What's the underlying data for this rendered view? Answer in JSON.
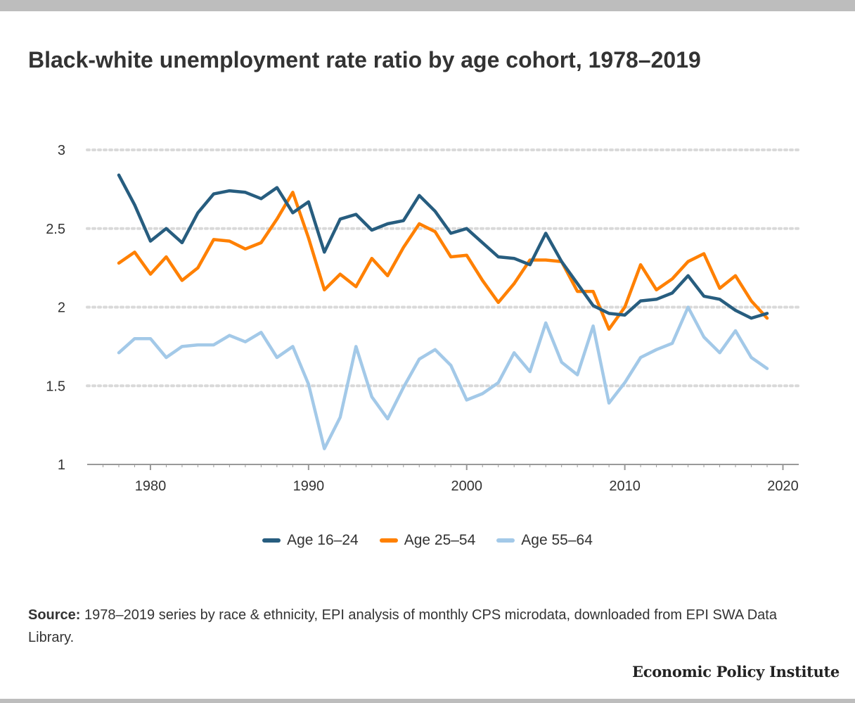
{
  "title": "Black-white unemployment rate ratio by age cohort, 1978–2019",
  "source": {
    "label": "Source:",
    "text": " 1978–2019 series by race & ethnicity, EPI analysis of monthly CPS microdata, downloaded from EPI SWA Data Library."
  },
  "logo": "Economic Policy Institute",
  "colors": {
    "series_1": "#275d7f",
    "series_2": "#ff8000",
    "series_3": "#a3c9e8",
    "grid": "#d9d9d9",
    "axis": "#999999"
  },
  "chart_data": {
    "type": "line",
    "xlim": [
      1976,
      2021
    ],
    "ylim": [
      1,
      3
    ],
    "x_ticks": [
      1980,
      1990,
      2000,
      2010,
      2020
    ],
    "x_tick_labels": [
      "1980",
      "1990",
      "2000",
      "2010",
      "2020"
    ],
    "y_ticks": [
      1,
      1.5,
      2,
      2.5,
      3
    ],
    "y_tick_labels": [
      "1",
      "1.5",
      "2",
      "2.5",
      "3"
    ],
    "grid": "horizontal dotted",
    "legend_position": "bottom",
    "x": [
      1978,
      1979,
      1980,
      1981,
      1982,
      1983,
      1984,
      1985,
      1986,
      1987,
      1988,
      1989,
      1990,
      1991,
      1992,
      1993,
      1994,
      1995,
      1996,
      1997,
      1998,
      1999,
      2000,
      2001,
      2002,
      2003,
      2004,
      2005,
      2006,
      2007,
      2008,
      2009,
      2010,
      2011,
      2012,
      2013,
      2014,
      2015,
      2016,
      2017,
      2018,
      2019
    ],
    "series": [
      {
        "name": "Age 16–24",
        "values": [
          2.84,
          2.65,
          2.42,
          2.5,
          2.41,
          2.6,
          2.72,
          2.74,
          2.73,
          2.69,
          2.76,
          2.6,
          2.67,
          2.35,
          2.56,
          2.59,
          2.49,
          2.53,
          2.55,
          2.71,
          2.61,
          2.47,
          2.5,
          2.41,
          2.32,
          2.31,
          2.27,
          2.47,
          2.29,
          2.15,
          2.01,
          1.96,
          1.95,
          2.04,
          2.05,
          2.09,
          2.2,
          2.07,
          2.05,
          1.98,
          1.93,
          1.96
        ]
      },
      {
        "name": "Age 25–54",
        "values": [
          2.28,
          2.35,
          2.21,
          2.32,
          2.17,
          2.25,
          2.43,
          2.42,
          2.37,
          2.41,
          2.56,
          2.73,
          2.44,
          2.11,
          2.21,
          2.13,
          2.31,
          2.2,
          2.38,
          2.53,
          2.48,
          2.32,
          2.33,
          2.17,
          2.03,
          2.15,
          2.3,
          2.3,
          2.29,
          2.1,
          2.1,
          1.86,
          2.0,
          2.27,
          2.11,
          2.18,
          2.29,
          2.34,
          2.12,
          2.2,
          2.04,
          1.93
        ]
      },
      {
        "name": "Age 55–64",
        "values": [
          1.71,
          1.8,
          1.8,
          1.68,
          1.75,
          1.76,
          1.76,
          1.82,
          1.78,
          1.84,
          1.68,
          1.75,
          1.51,
          1.1,
          1.3,
          1.75,
          1.43,
          1.29,
          1.49,
          1.67,
          1.73,
          1.63,
          1.41,
          1.45,
          1.52,
          1.71,
          1.59,
          1.9,
          1.65,
          1.57,
          1.88,
          1.39,
          1.52,
          1.68,
          1.73,
          1.77,
          2.0,
          1.81,
          1.71,
          1.85,
          1.68,
          1.61
        ]
      }
    ]
  }
}
